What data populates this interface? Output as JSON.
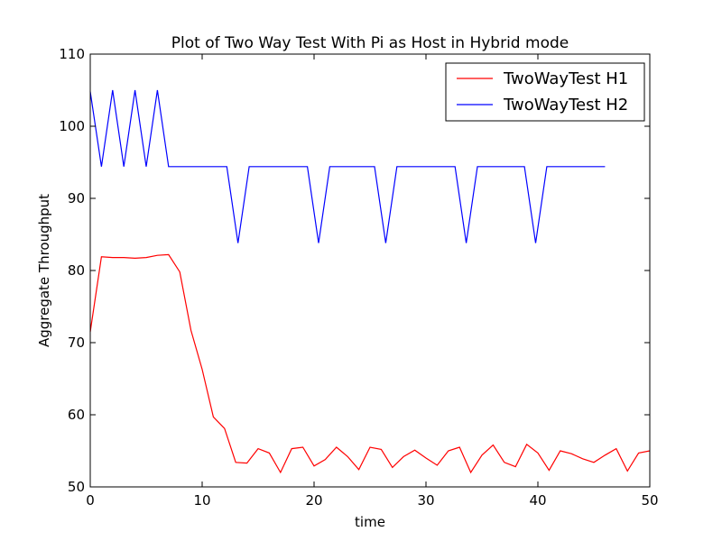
{
  "chart_data": {
    "type": "line",
    "title": "Plot of Two Way Test With Pi as Host in Hybrid mode",
    "xlabel": "time",
    "ylabel": "Aggregate Throughput",
    "xlim": [
      0,
      50
    ],
    "ylim": [
      50,
      110
    ],
    "xticks": [
      0,
      10,
      20,
      30,
      40,
      50
    ],
    "yticks": [
      50,
      60,
      70,
      80,
      90,
      100,
      110
    ],
    "grid": false,
    "legend_position": "top-right",
    "series": [
      {
        "name": "TwoWayTest H1",
        "color": "#ff0000",
        "x": [
          0,
          1,
          2,
          3,
          4,
          5,
          6,
          7,
          8,
          9,
          10,
          11,
          12,
          13,
          14,
          15,
          16,
          17,
          18,
          19,
          20,
          21,
          22,
          23,
          24,
          25,
          26,
          27,
          28,
          29,
          30,
          31,
          32,
          33,
          34,
          35,
          36,
          37,
          38,
          39,
          40,
          41,
          42,
          43,
          44,
          45,
          46,
          47,
          48,
          49,
          50
        ],
        "y": [
          71.5,
          81.9,
          81.8,
          81.8,
          81.7,
          81.8,
          82.1,
          82.2,
          79.8,
          71.7,
          66.3,
          59.7,
          58.1,
          53.4,
          53.3,
          55.3,
          54.7,
          52.0,
          55.3,
          55.5,
          52.9,
          53.8,
          55.5,
          54.2,
          52.4,
          55.5,
          55.2,
          52.7,
          54.2,
          55.1,
          54.0,
          53.0,
          55.0,
          55.5,
          52.0,
          54.4,
          55.8,
          53.4,
          52.8,
          55.9,
          54.7,
          52.3,
          55.0,
          54.6,
          53.9,
          53.4,
          54.4,
          55.3,
          52.2,
          54.7,
          55.0
        ]
      },
      {
        "name": "TwoWayTest H2",
        "color": "#0000ff",
        "x": [
          0,
          1,
          2,
          3,
          4,
          5,
          6,
          7,
          8,
          9,
          10,
          11,
          12.2,
          13.2,
          14.2,
          15,
          16,
          17,
          18,
          19.4,
          20.4,
          21.4,
          22,
          23,
          24,
          25.4,
          26.4,
          27.4,
          28,
          29,
          30,
          31,
          32.6,
          33.6,
          34.6,
          35,
          36,
          37,
          38,
          38.8,
          39.8,
          40.8,
          41,
          42,
          43,
          44,
          45,
          46
        ],
        "y": [
          104.8,
          94.4,
          105.0,
          94.4,
          105.0,
          94.4,
          105.0,
          94.4,
          94.4,
          94.4,
          94.4,
          94.4,
          94.4,
          83.8,
          94.4,
          94.4,
          94.4,
          94.4,
          94.4,
          94.4,
          83.8,
          94.4,
          94.4,
          94.4,
          94.4,
          94.4,
          83.8,
          94.4,
          94.4,
          94.4,
          94.4,
          94.4,
          94.4,
          83.8,
          94.4,
          94.4,
          94.4,
          94.4,
          94.4,
          94.4,
          83.8,
          94.4,
          94.4,
          94.4,
          94.4,
          94.4,
          94.4,
          94.4
        ]
      }
    ]
  }
}
